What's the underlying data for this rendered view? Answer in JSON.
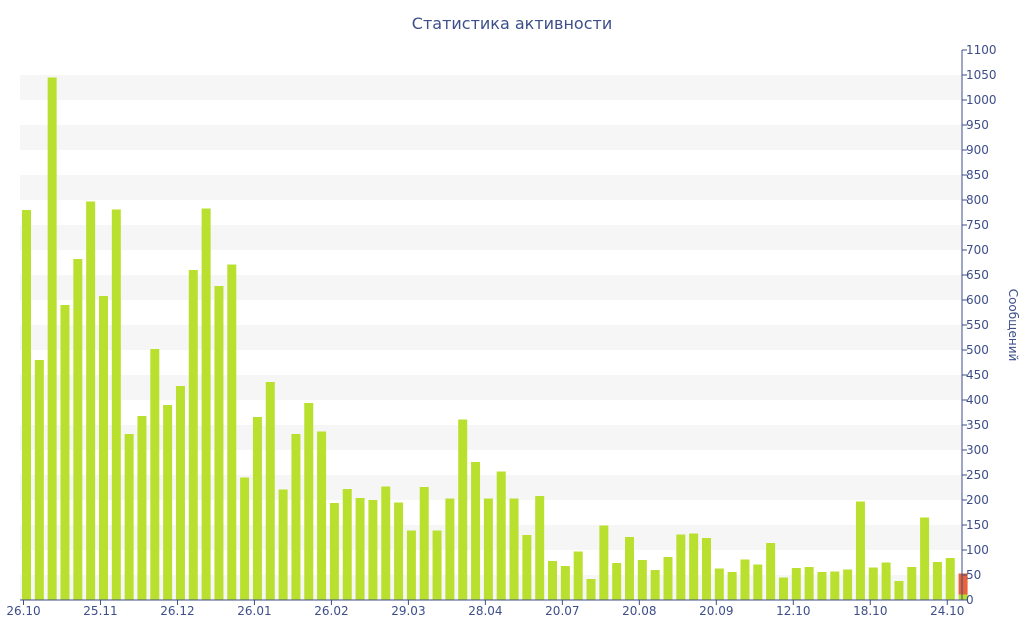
{
  "chart_data": {
    "type": "bar",
    "title": "Статистика активности",
    "xlabel": "",
    "ylabel": "Сообщений",
    "ylim": [
      0,
      1100
    ],
    "y_ticks": [
      0,
      50,
      100,
      150,
      200,
      250,
      300,
      350,
      400,
      450,
      500,
      550,
      600,
      650,
      700,
      750,
      800,
      850,
      900,
      950,
      1000,
      1050,
      1100
    ],
    "y_axis_position": "right",
    "grid": "horizontal alternating bands",
    "x_tick_labels": [
      {
        "label": "26.10",
        "index": 0
      },
      {
        "label": "25.11",
        "index": 6
      },
      {
        "label": "26.12",
        "index": 12
      },
      {
        "label": "26.01",
        "index": 18
      },
      {
        "label": "26.02",
        "index": 24
      },
      {
        "label": "29.03",
        "index": 30
      },
      {
        "label": "28.04",
        "index": 36
      },
      {
        "label": "20.07",
        "index": 42
      },
      {
        "label": "20.08",
        "index": 48
      },
      {
        "label": "20.09",
        "index": 54
      },
      {
        "label": "12.10",
        "index": 60
      },
      {
        "label": "18.10",
        "index": 66
      },
      {
        "label": "24.10",
        "index": 72
      }
    ],
    "colors": {
      "bar": "#b9e02e",
      "highlight": "#e8623a",
      "band": "#f6f6f6",
      "axis": "#3d4e8a"
    },
    "series": [
      {
        "values": [
          780,
          480,
          1045,
          590,
          682,
          797,
          608,
          781,
          332,
          368,
          502,
          390,
          428,
          660,
          783,
          628,
          671,
          245,
          366,
          436,
          221,
          332,
          394,
          337,
          194,
          222,
          204,
          200,
          227,
          195,
          139,
          226,
          139,
          203,
          361,
          276,
          203,
          257,
          203,
          130,
          208,
          78,
          68,
          97,
          42,
          149,
          74,
          126,
          80,
          60,
          86,
          131,
          133,
          124,
          63,
          56,
          81,
          71,
          114,
          45,
          64,
          66,
          56,
          57,
          61,
          197,
          65,
          75,
          38,
          66,
          165,
          76,
          84,
          11
        ]
      },
      {
        "values": [
          0,
          0,
          0,
          0,
          0,
          0,
          0,
          0,
          0,
          0,
          0,
          0,
          0,
          0,
          0,
          0,
          0,
          0,
          0,
          0,
          0,
          0,
          0,
          0,
          0,
          0,
          0,
          0,
          0,
          0,
          0,
          0,
          0,
          0,
          0,
          0,
          0,
          0,
          0,
          0,
          0,
          0,
          0,
          0,
          0,
          0,
          0,
          0,
          0,
          0,
          0,
          0,
          0,
          0,
          0,
          0,
          0,
          0,
          0,
          0,
          0,
          0,
          0,
          0,
          0,
          0,
          0,
          0,
          0,
          0,
          0,
          0,
          0,
          42
        ]
      }
    ]
  }
}
